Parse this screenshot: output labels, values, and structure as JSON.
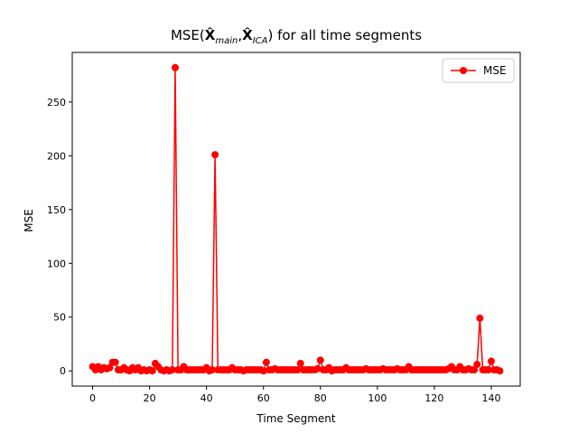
{
  "chart_data": {
    "type": "line",
    "title": "MSE(X̂main,X̂ICA) for all time segments",
    "title_parts": {
      "prefix": "MSE(",
      "sym1": "X̂",
      "sub1": "main",
      "sep": ",",
      "sym2": "X̂",
      "sub2": "ICA",
      "suffix": ") for all time segments"
    },
    "xlabel": "Time Segment",
    "ylabel": "MSE",
    "xlim": [
      -7.15,
      150.15
    ],
    "ylim": [
      -14.1,
      296.1
    ],
    "xticks": [
      0,
      20,
      40,
      60,
      80,
      100,
      120,
      140
    ],
    "yticks": [
      0,
      50,
      100,
      150,
      200,
      250
    ],
    "legend_position": "upper right",
    "color": "#ff0000",
    "series": [
      {
        "name": "MSE",
        "x": [
          0,
          1,
          2,
          3,
          4,
          5,
          6,
          7,
          8,
          9,
          10,
          11,
          12,
          13,
          14,
          15,
          16,
          17,
          18,
          19,
          20,
          21,
          22,
          23,
          24,
          25,
          26,
          27,
          28,
          29,
          30,
          31,
          32,
          33,
          34,
          35,
          36,
          37,
          38,
          39,
          40,
          41,
          42,
          43,
          44,
          45,
          46,
          47,
          48,
          49,
          50,
          51,
          52,
          53,
          54,
          55,
          56,
          57,
          58,
          59,
          60,
          61,
          62,
          63,
          64,
          65,
          66,
          67,
          68,
          69,
          70,
          71,
          72,
          73,
          74,
          75,
          76,
          77,
          78,
          79,
          80,
          81,
          82,
          83,
          84,
          85,
          86,
          87,
          88,
          89,
          90,
          91,
          92,
          93,
          94,
          95,
          96,
          97,
          98,
          99,
          100,
          101,
          102,
          103,
          104,
          105,
          106,
          107,
          108,
          109,
          110,
          111,
          112,
          113,
          114,
          115,
          116,
          117,
          118,
          119,
          120,
          121,
          122,
          123,
          124,
          125,
          126,
          127,
          128,
          129,
          130,
          131,
          132,
          133,
          134,
          135,
          136,
          137,
          138,
          139,
          140,
          141,
          142,
          143
        ],
        "y": [
          4,
          1,
          4,
          1,
          3,
          2,
          3,
          8,
          8,
          1,
          1,
          3,
          1,
          0,
          3,
          1,
          3,
          0,
          1,
          0,
          1,
          0,
          7,
          4,
          1,
          0,
          1,
          0,
          1,
          282,
          1,
          1,
          4,
          1,
          1,
          1,
          1,
          1,
          1,
          1,
          3,
          0,
          1,
          201,
          1,
          1,
          1,
          1,
          1,
          3,
          1,
          1,
          1,
          0,
          1,
          1,
          1,
          1,
          1,
          1,
          0,
          8,
          1,
          1,
          2,
          1,
          1,
          1,
          1,
          1,
          1,
          1,
          1,
          7,
          1,
          1,
          1,
          1,
          1,
          2,
          10,
          1,
          1,
          3,
          0,
          1,
          1,
          1,
          1,
          3,
          1,
          1,
          1,
          1,
          1,
          1,
          2,
          1,
          1,
          1,
          1,
          1,
          2,
          1,
          1,
          1,
          1,
          2,
          1,
          1,
          1,
          4,
          1,
          1,
          1,
          1,
          1,
          1,
          1,
          1,
          1,
          1,
          1,
          1,
          1,
          2,
          4,
          1,
          1,
          4,
          1,
          1,
          2,
          1,
          1,
          6,
          49,
          1,
          1,
          1,
          9,
          1,
          1,
          0
        ]
      }
    ]
  }
}
